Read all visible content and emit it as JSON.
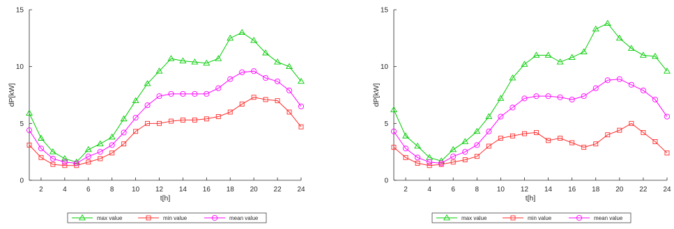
{
  "chart_data": [
    {
      "type": "line",
      "title": "",
      "xlabel": "t[h]",
      "ylabel": "dP[kW]",
      "xlim": [
        1,
        24
      ],
      "ylim": [
        0,
        15
      ],
      "x": [
        1,
        2,
        3,
        4,
        5,
        6,
        7,
        8,
        9,
        10,
        11,
        12,
        13,
        14,
        15,
        16,
        17,
        18,
        19,
        20,
        21,
        22,
        23,
        24
      ],
      "xticks": [
        2,
        4,
        6,
        8,
        10,
        12,
        14,
        16,
        18,
        20,
        22,
        24
      ],
      "yticks": [
        0,
        5,
        10,
        15
      ],
      "grid": false,
      "legend_position": "bottom",
      "series": [
        {
          "name": "max value",
          "color": "#00cc00",
          "marker": "triangle",
          "values": [
            5.9,
            3.7,
            2.5,
            1.9,
            1.6,
            2.7,
            3.2,
            3.8,
            5.4,
            7.0,
            8.5,
            9.6,
            10.7,
            10.5,
            10.4,
            10.3,
            10.7,
            12.5,
            13.0,
            12.3,
            11.2,
            10.4,
            10.0,
            8.7
          ]
        },
        {
          "name": "min value",
          "color": "#ff2a2a",
          "marker": "square",
          "values": [
            3.1,
            2.0,
            1.4,
            1.3,
            1.3,
            1.6,
            1.9,
            2.4,
            3.2,
            4.3,
            5.0,
            5.0,
            5.2,
            5.3,
            5.3,
            5.4,
            5.6,
            6.0,
            6.7,
            7.3,
            7.1,
            7.0,
            6.0,
            4.7
          ]
        },
        {
          "name": "mean value",
          "color": "#ff00ff",
          "marker": "circle",
          "values": [
            4.4,
            2.8,
            1.9,
            1.6,
            1.5,
            2.1,
            2.5,
            3.1,
            4.2,
            5.5,
            6.6,
            7.4,
            7.6,
            7.6,
            7.6,
            7.6,
            8.1,
            8.9,
            9.5,
            9.6,
            9.0,
            8.7,
            7.9,
            6.5
          ]
        }
      ]
    },
    {
      "type": "line",
      "title": "",
      "xlabel": "t[h]",
      "ylabel": "dP[kW]",
      "xlim": [
        1,
        24
      ],
      "ylim": [
        0,
        15
      ],
      "x": [
        1,
        2,
        3,
        4,
        5,
        6,
        7,
        8,
        9,
        10,
        11,
        12,
        13,
        14,
        15,
        16,
        17,
        18,
        19,
        20,
        21,
        22,
        23,
        24
      ],
      "xticks": [
        2,
        4,
        6,
        8,
        10,
        12,
        14,
        16,
        18,
        20,
        22,
        24
      ],
      "yticks": [
        0,
        5,
        10,
        15
      ],
      "grid": false,
      "legend_position": "bottom",
      "series": [
        {
          "name": "max value",
          "color": "#00cc00",
          "marker": "triangle",
          "values": [
            6.2,
            3.9,
            3.0,
            2.0,
            1.7,
            2.7,
            3.4,
            4.3,
            5.6,
            7.2,
            9.0,
            10.2,
            11.0,
            11.0,
            10.4,
            10.8,
            11.3,
            13.3,
            13.8,
            12.5,
            11.6,
            11.0,
            10.9,
            9.6
          ]
        },
        {
          "name": "min value",
          "color": "#ff2a2a",
          "marker": "square",
          "values": [
            2.9,
            2.0,
            1.5,
            1.3,
            1.4,
            1.6,
            1.8,
            2.1,
            3.0,
            3.7,
            3.9,
            4.1,
            4.2,
            3.5,
            3.7,
            3.3,
            2.9,
            3.2,
            4.0,
            4.4,
            5.0,
            4.2,
            3.4,
            2.4
          ]
        },
        {
          "name": "mean value",
          "color": "#ff00ff",
          "marker": "circle",
          "values": [
            4.3,
            2.8,
            2.0,
            1.6,
            1.5,
            2.1,
            2.5,
            3.1,
            4.3,
            5.6,
            6.4,
            7.2,
            7.4,
            7.4,
            7.3,
            7.1,
            7.4,
            8.1,
            8.8,
            8.9,
            8.4,
            7.9,
            7.1,
            5.6
          ]
        }
      ]
    }
  ]
}
